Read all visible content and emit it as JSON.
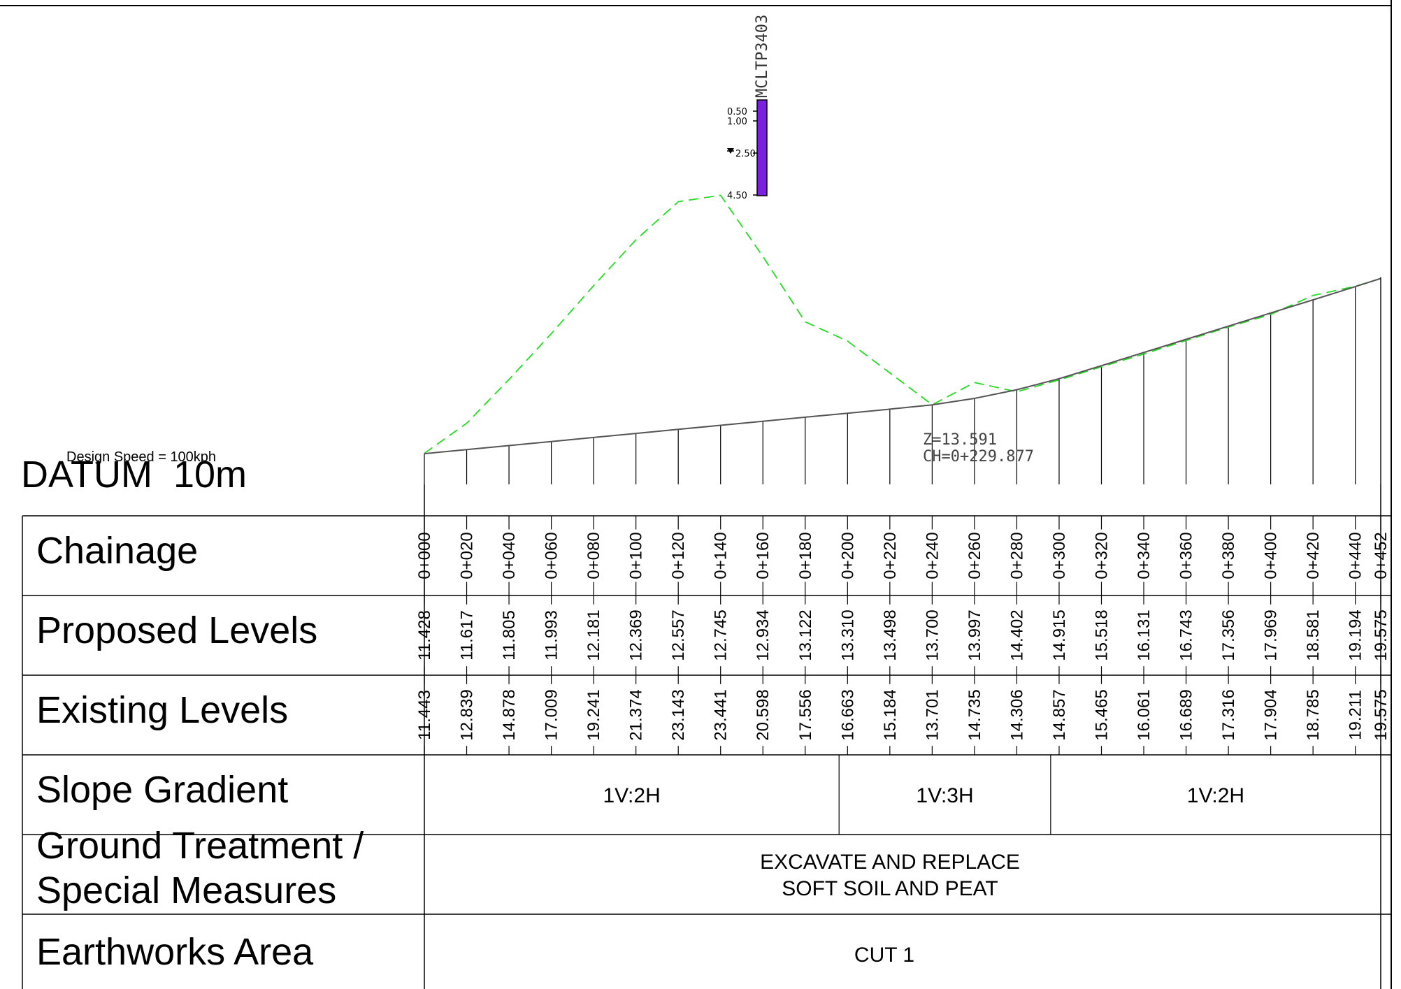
{
  "design_speed": "Design Speed = 100kph",
  "datum": "DATUM  10m",
  "borehole": {
    "id": "MCLTP3403",
    "depths": [
      "0.50",
      "1.00",
      "2.50",
      "4.50"
    ],
    "fill_color": "#7b1fe0"
  },
  "annotation": {
    "z": "Z=13.591",
    "ch": "CH=0+229.877"
  },
  "rows": {
    "chainage": "Chainage",
    "proposed": "Proposed Levels",
    "existing": "Existing Levels",
    "slope": "Slope Gradient",
    "treatment_line1": "Ground Treatment /",
    "treatment_line2": "Special Measures",
    "earthworks": "Earthworks Area"
  },
  "slope_segments": [
    {
      "label": "1V:2H",
      "from": 0,
      "to": 196
    },
    {
      "label": "1V:3H",
      "from": 196,
      "to": 296
    },
    {
      "label": "1V:2H",
      "from": 296,
      "to": 452
    }
  ],
  "treatment": {
    "line1": "EXCAVATE AND REPLACE",
    "line2": "SOFT SOIL AND PEAT"
  },
  "earthworks_value": "CUT 1",
  "colors": {
    "existing_ground": "#22dd22",
    "proposed_line": "#555555"
  },
  "chart_data": {
    "type": "line",
    "x": [
      0,
      20,
      40,
      60,
      80,
      100,
      120,
      140,
      160,
      180,
      200,
      220,
      240,
      260,
      280,
      300,
      320,
      340,
      360,
      380,
      400,
      420,
      440,
      452
    ],
    "chainage_labels": [
      "0+000",
      "0+020",
      "0+040",
      "0+060",
      "0+080",
      "0+100",
      "0+120",
      "0+140",
      "0+160",
      "0+180",
      "0+200",
      "0+220",
      "0+240",
      "0+260",
      "0+280",
      "0+300",
      "0+320",
      "0+340",
      "0+360",
      "0+380",
      "0+400",
      "0+420",
      "0+440",
      "0+452"
    ],
    "series": [
      {
        "name": "Proposed Levels",
        "style": "solid",
        "values": [
          11.428,
          11.617,
          11.805,
          11.993,
          12.181,
          12.369,
          12.557,
          12.745,
          12.934,
          13.122,
          13.31,
          13.498,
          13.7,
          13.997,
          14.402,
          14.915,
          15.518,
          16.131,
          16.743,
          17.356,
          17.969,
          18.581,
          19.194,
          19.575
        ],
        "labels": [
          "11.428",
          "11.617",
          "11.805",
          "11.993",
          "12.181",
          "12.369",
          "12.557",
          "12.745",
          "12.934",
          "13.122",
          "13.310",
          "13.498",
          "13.700",
          "13.997",
          "14.402",
          "14.915",
          "15.518",
          "16.131",
          "16.743",
          "17.356",
          "17.969",
          "18.581",
          "19.194",
          "19.575"
        ]
      },
      {
        "name": "Existing Levels",
        "style": "dashed",
        "values": [
          11.443,
          12.839,
          14.878,
          17.009,
          19.241,
          21.374,
          23.143,
          23.441,
          20.598,
          17.556,
          16.663,
          15.184,
          13.701,
          14.735,
          14.306,
          14.857,
          15.465,
          16.061,
          16.689,
          17.316,
          17.904,
          18.785,
          19.211,
          19.575
        ],
        "labels": [
          "11.443",
          "12.839",
          "14.878",
          "17.009",
          "19.241",
          "21.374",
          "23.143",
          "23.441",
          "20.598",
          "17.556",
          "16.663",
          "15.184",
          "13.701",
          "14.735",
          "14.306",
          "14.857",
          "15.465",
          "16.061",
          "16.689",
          "17.316",
          "17.904",
          "18.785",
          "19.211",
          "19.575"
        ]
      }
    ],
    "datum": 10,
    "xlim": [
      0,
      452
    ]
  }
}
